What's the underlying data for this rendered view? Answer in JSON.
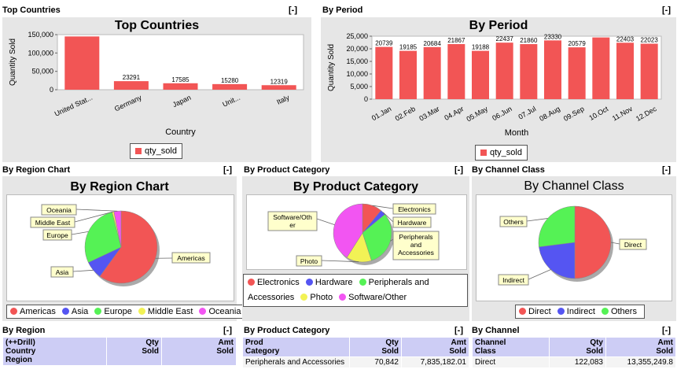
{
  "panels": {
    "top_countries": {
      "title": "Top Countries",
      "collapse": "[-]",
      "chart_title": "Top Countries",
      "legend": "qty_sold",
      "chart_data": {
        "type": "bar",
        "title": "Top Countries",
        "xlabel": "Country",
        "ylabel": "Quantity Sold",
        "ylim": [
          0,
          150000
        ],
        "yticks": [
          "0",
          "50,000",
          "100,000",
          "150,000"
        ],
        "categories": [
          "United Stat...",
          "Germany",
          "Japan",
          "Unit...",
          "Italy"
        ],
        "values": [
          145000,
          23291,
          17585,
          15280,
          12319
        ],
        "labels": [
          "",
          "23291",
          "17585",
          "15280",
          "12319"
        ],
        "color": "#f25555"
      }
    },
    "by_period": {
      "title": "By Period",
      "collapse": "[-]",
      "chart_title": "By Period",
      "legend": "qty_sold",
      "chart_data": {
        "type": "bar",
        "title": "By Period",
        "xlabel": "Month",
        "ylabel": "Quantity Sold",
        "ylim": [
          0,
          25000
        ],
        "yticks": [
          "0",
          "5,000",
          "10,000",
          "15,000",
          "20,000",
          "25,000"
        ],
        "categories": [
          "01.Jan",
          "02.Feb",
          "03.Mar",
          "04.Apr",
          "05.May",
          "06.Jun",
          "07.Jul",
          "08.Aug",
          "09.Sep",
          "10.Oct",
          "11.Nov",
          "12.Dec"
        ],
        "values": [
          20739,
          19185,
          20684,
          21867,
          19188,
          22437,
          21860,
          23330,
          20579,
          24500,
          22403,
          22023
        ],
        "labels": [
          "20739",
          "19185",
          "20684",
          "21867",
          "19188",
          "22437",
          "21860",
          "23330",
          "20579",
          "",
          "22403",
          "22023"
        ],
        "color": "#f25555"
      }
    },
    "by_region_chart": {
      "title": "By Region Chart",
      "collapse": "[-]",
      "chart_title": "By Region Chart",
      "legend_items": [
        {
          "label": "Americas",
          "color": "#f25555"
        },
        {
          "label": "Asia",
          "color": "#5555f2"
        },
        {
          "label": "Europe",
          "color": "#55f255"
        },
        {
          "label": "Middle East",
          "color": "#f2f255"
        },
        {
          "label": "Oceania",
          "color": "#f255f2"
        }
      ],
      "chart_data": {
        "type": "pie",
        "title": "By Region Chart",
        "slices": [
          {
            "label": "Americas",
            "value": 60,
            "color": "#f25555"
          },
          {
            "label": "Asia",
            "value": 8,
            "color": "#5555f2"
          },
          {
            "label": "Europe",
            "value": 28,
            "color": "#55f255"
          },
          {
            "label": "Middle East",
            "value": 0.8,
            "color": "#f2f255"
          },
          {
            "label": "Oceania",
            "value": 3.2,
            "color": "#f255f2"
          }
        ]
      }
    },
    "by_product_category": {
      "title": "By Product Category",
      "collapse": "[-]",
      "chart_title": "By Product Category",
      "slice_labels": [
        "Software/Oth\ner",
        "Electronics",
        "Hardware",
        "Peripherals\nand\nAccessories",
        "Photo"
      ],
      "legend_items": [
        {
          "label": "Electronics",
          "color": "#f25555"
        },
        {
          "label": "Hardware",
          "color": "#5555f2"
        },
        {
          "label": "Peripherals and Accessories",
          "color": "#55f255"
        },
        {
          "label": "Photo",
          "color": "#f2f255"
        },
        {
          "label": "Software/Other",
          "color": "#f255f2"
        }
      ],
      "chart_data": {
        "type": "pie",
        "title": "By Product Category",
        "slices": [
          {
            "label": "Electronics",
            "value": 11,
            "color": "#f25555"
          },
          {
            "label": "Hardware",
            "value": 3,
            "color": "#5555f2"
          },
          {
            "label": "Peripherals and Accessories",
            "value": 31,
            "color": "#55f255"
          },
          {
            "label": "Photo",
            "value": 14,
            "color": "#f2f255"
          },
          {
            "label": "Software/Other",
            "value": 41,
            "color": "#f255f2"
          }
        ]
      }
    },
    "by_channel_class": {
      "title": "By Channel Class",
      "collapse": "[-]",
      "chart_title": "By Channel Class",
      "legend_items": [
        {
          "label": "Direct",
          "color": "#f25555"
        },
        {
          "label": "Indirect",
          "color": "#5555f2"
        },
        {
          "label": "Others",
          "color": "#55f255"
        }
      ],
      "chart_data": {
        "type": "pie",
        "title": "By Channel Class",
        "slices": [
          {
            "label": "Direct",
            "value": 50,
            "color": "#f25555"
          },
          {
            "label": "Indirect",
            "value": 23,
            "color": "#5555f2"
          },
          {
            "label": "Others",
            "value": 27,
            "color": "#55f255"
          }
        ]
      }
    },
    "by_region": {
      "title": "By Region",
      "collapse": "[-]",
      "headers": [
        "(++Drill)\nCountry\nRegion",
        "Qty\nSold",
        "Amt\nSold"
      ]
    },
    "by_product_cat_table": {
      "title": "By Product Category",
      "collapse": "[-]",
      "headers": [
        "Prod\nCategory",
        "Qty\nSold",
        "Amt\nSold"
      ],
      "rows": [
        [
          "Peripherals and Accessories",
          "70,842",
          "7,835,182.01"
        ]
      ]
    },
    "by_channel": {
      "title": "By Channel",
      "collapse": "[-]",
      "headers": [
        "Channel\nClass",
        "Qty\nSold",
        "Amt\nSold"
      ],
      "rows": [
        [
          "Direct",
          "122,083",
          "13,355,249.8"
        ]
      ]
    }
  }
}
